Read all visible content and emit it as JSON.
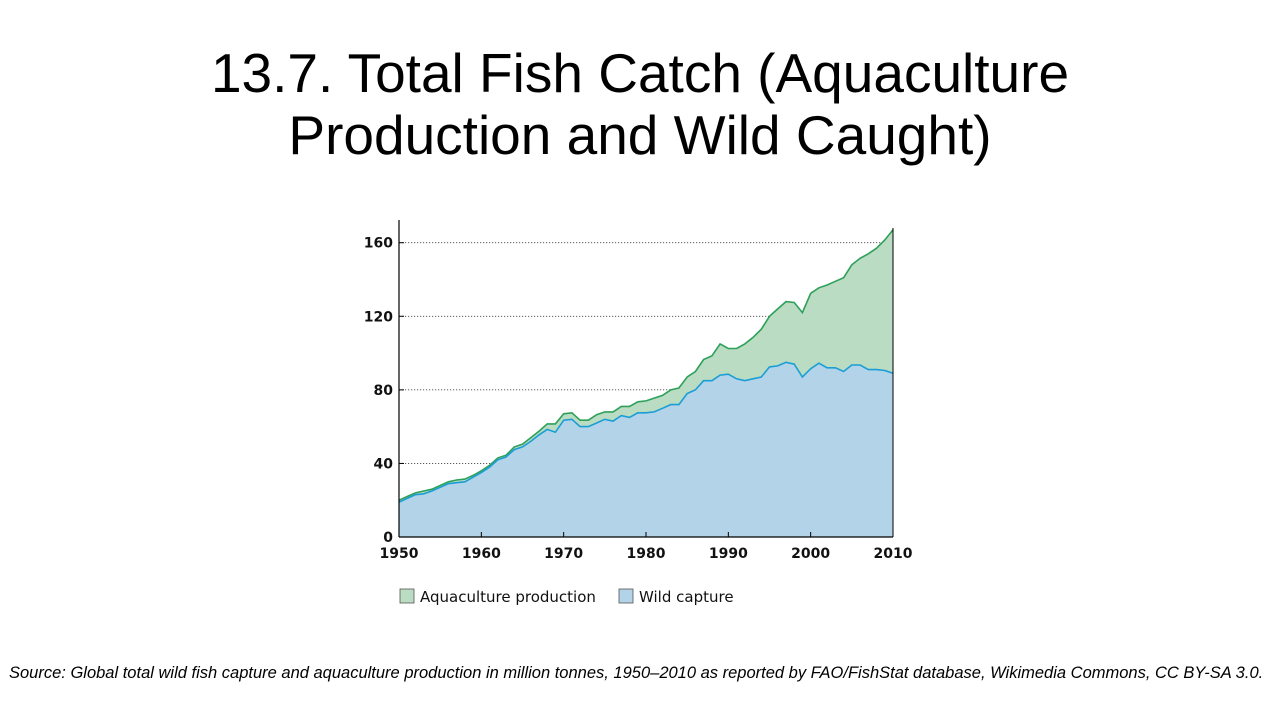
{
  "slide": {
    "title_line1": "13.7. Total Fish Catch (Aquaculture",
    "title_line2": "Production and Wild Caught)",
    "source": "Source: Global total wild fish capture and aquaculture production in million tonnes, 1950–2010 as reported by FAO/FishStat database, Wikimedia Commons, CC BY-SA 3.0."
  },
  "chart_data": {
    "type": "area",
    "stacked": true,
    "title": "",
    "xlabel": "",
    "ylabel": "",
    "xlim": [
      1950,
      2010
    ],
    "ylim": [
      0,
      168
    ],
    "xticks": [
      1950,
      1960,
      1970,
      1980,
      1990,
      2000,
      2010
    ],
    "yticks": [
      0,
      40,
      80,
      120,
      160
    ],
    "grid": "horizontal dotted",
    "legend_position": "bottom",
    "x": [
      1950,
      1951,
      1952,
      1953,
      1954,
      1955,
      1956,
      1957,
      1958,
      1959,
      1960,
      1961,
      1962,
      1963,
      1964,
      1965,
      1966,
      1967,
      1968,
      1969,
      1970,
      1971,
      1972,
      1973,
      1974,
      1975,
      1976,
      1977,
      1978,
      1979,
      1980,
      1981,
      1982,
      1983,
      1984,
      1985,
      1986,
      1987,
      1988,
      1989,
      1990,
      1991,
      1992,
      1993,
      1994,
      1995,
      1996,
      1997,
      1998,
      1999,
      2000,
      2001,
      2002,
      2003,
      2004,
      2005,
      2006,
      2007,
      2008,
      2009,
      2010
    ],
    "series": [
      {
        "name": "Wild capture",
        "color": "#b3d3e9",
        "line_color": "#1a9ed5",
        "values": [
          19,
          21,
          23,
          23.5,
          25,
          27,
          29,
          29.5,
          30,
          32.5,
          35,
          38,
          42,
          43.5,
          47.5,
          49,
          52,
          55.5,
          58.5,
          57,
          63.5,
          64,
          60,
          60,
          62,
          64,
          63,
          66,
          65,
          67.5,
          67.5,
          68,
          70,
          72,
          72,
          78,
          80,
          85,
          85,
          88,
          88.5,
          86,
          85,
          86,
          87,
          92.5,
          93,
          95,
          94,
          87,
          91.5,
          94.5,
          92,
          92,
          90,
          93.5,
          93.5,
          91,
          91,
          90.5,
          89
        ]
      },
      {
        "name": "Aquaculture production",
        "color": "#b9dcc2",
        "line_color": "#2ea05a",
        "values": [
          1,
          1,
          1,
          1.5,
          1,
          1,
          1,
          1.5,
          1.5,
          1,
          1,
          1,
          1,
          1,
          1.5,
          1.5,
          2,
          2,
          3,
          4.5,
          3.5,
          3.5,
          3.5,
          3.5,
          4.5,
          4,
          5,
          5,
          6,
          6,
          6.5,
          7.5,
          7,
          8,
          9,
          9,
          10,
          11.5,
          13.5,
          17,
          14,
          16.5,
          20,
          22.5,
          26,
          27.5,
          31,
          33,
          33.5,
          35,
          41,
          41,
          45,
          47,
          51,
          54.5,
          58,
          63,
          66,
          71,
          78
        ]
      }
    ]
  },
  "legend": {
    "aquaculture_label": "Aquaculture production",
    "wild_label": "Wild capture",
    "aquaculture_swatch": "#b9dcc2",
    "wild_swatch": "#b3d3e9",
    "swatch_border": "#555555"
  }
}
